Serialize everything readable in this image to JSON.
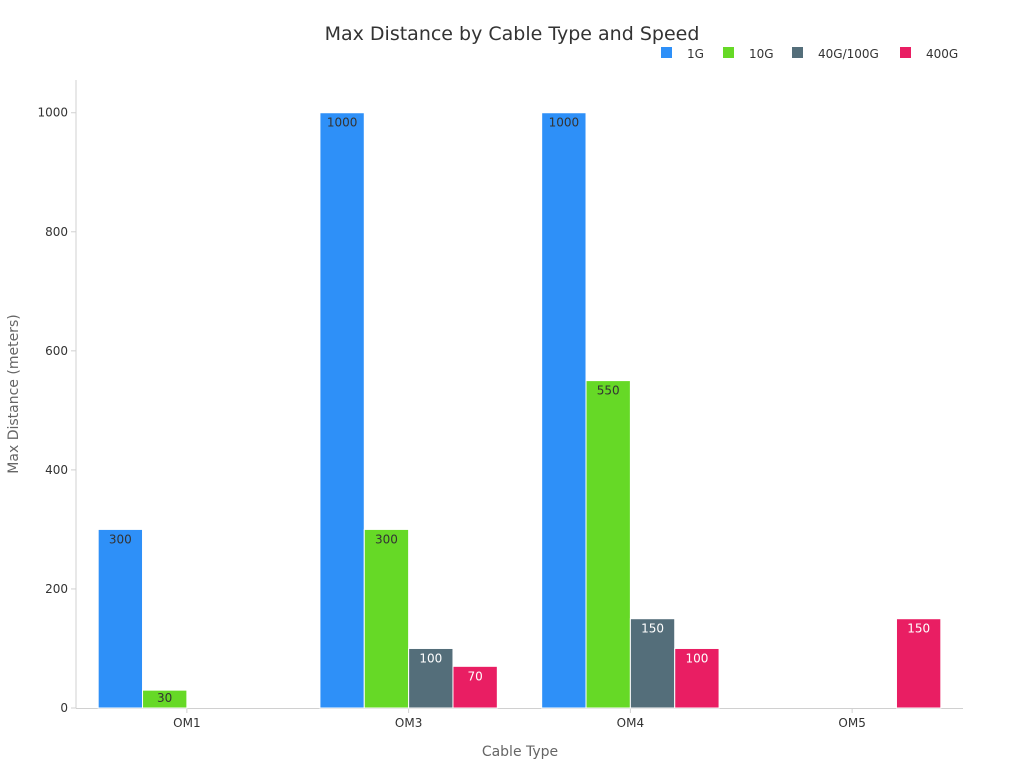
{
  "chart_data": {
    "type": "bar",
    "title": "Max Distance by Cable Type and Speed",
    "xlabel": "Cable Type",
    "ylabel": "Max Distance (meters)",
    "categories": [
      "OM1",
      "OM3",
      "OM4",
      "OM5"
    ],
    "ylim": [
      0,
      1055
    ],
    "yticks": [
      0,
      200,
      400,
      600,
      800,
      1000
    ],
    "grid": false,
    "legend_position": "top-right",
    "series": [
      {
        "name": "1G",
        "color": "#2e90f8",
        "label_color": "#333333",
        "values": [
          300,
          1000,
          1000,
          null
        ]
      },
      {
        "name": "10G",
        "color": "#66d926",
        "label_color": "#333333",
        "values": [
          30,
          300,
          550,
          null
        ]
      },
      {
        "name": "40G/100G",
        "color": "#546e7a",
        "label_color": "#ffffff",
        "values": [
          null,
          100,
          150,
          null
        ]
      },
      {
        "name": "400G",
        "color": "#e91e63",
        "label_color": "#ffffff",
        "values": [
          null,
          70,
          100,
          150
        ]
      }
    ]
  }
}
